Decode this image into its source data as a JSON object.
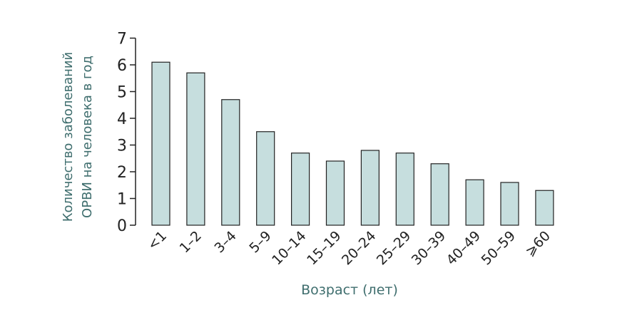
{
  "chart_data": {
    "type": "bar",
    "categories": [
      "<1",
      "1–2",
      "3–4",
      "5–9",
      "10–14",
      "15–19",
      "20–24",
      "25–29",
      "30–39",
      "40–49",
      "50–59",
      "⩾60"
    ],
    "values": [
      6.1,
      5.7,
      4.7,
      3.5,
      2.7,
      2.4,
      2.8,
      2.7,
      2.3,
      1.7,
      1.6,
      1.3
    ],
    "xlabel": "Возраст (лет)",
    "ylabel_line1": "Количество заболеваний",
    "ylabel_line2": "ОРВИ на человека в год",
    "ylim": [
      0,
      7
    ],
    "yticks": [
      "0",
      "1",
      "2",
      "3",
      "4",
      "5",
      "6",
      "7"
    ],
    "grid": false,
    "colors": {
      "bar_fill": "#c6dede",
      "bar_stroke": "#222222",
      "axis_title": "#3f6e6e",
      "ticks": "#222222"
    }
  }
}
